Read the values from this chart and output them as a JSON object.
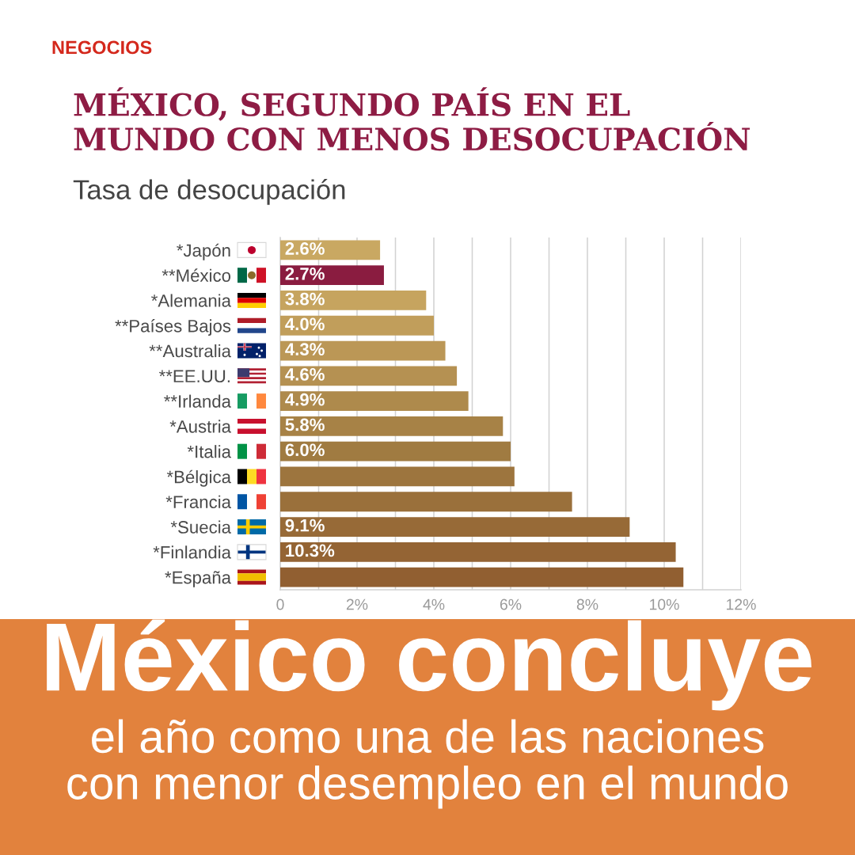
{
  "chart_data": {
    "type": "bar",
    "orientation": "horizontal",
    "title": "MÉXICO, SEGUNDO PAÍS EN EL\nMUNDO CON MENOS DESOCUPACIÓN",
    "subtitle": "Tasa de desocupación",
    "categories": [
      "*Japón",
      "**México",
      "*Alemania",
      "**Países Bajos",
      "**Australia",
      "**EE.UU.",
      "**Irlanda",
      "*Austria",
      "*Italia",
      "*Bélgica",
      "*Francia",
      "*Suecia",
      "*Finlandia",
      "*España"
    ],
    "values": [
      2.6,
      2.7,
      3.8,
      4.0,
      4.3,
      4.6,
      4.9,
      5.8,
      6.0,
      6.1,
      7.6,
      9.1,
      10.3,
      10.5
    ],
    "value_labels": [
      "2.6%",
      "2.7%",
      "3.8%",
      "4.0%",
      "4.3%",
      "4.6%",
      "4.9%",
      "5.8%",
      "6.0%",
      null,
      null,
      "9.1%",
      "10.3%",
      null
    ],
    "colors": [
      "#c9a862",
      "#8a1c40",
      "#c6a45f",
      "#c19e5b",
      "#bb9756",
      "#b59152",
      "#ae8a4c",
      "#a78246",
      "#a07b41",
      "#9d753e",
      "#9a703b",
      "#976a37",
      "#946434",
      "#915f31"
    ],
    "xlim": [
      0,
      12
    ],
    "xticks": [
      0,
      {
        "value": 1,
        "label": null
      },
      {
        "value": 2,
        "label": "2%"
      },
      {
        "value": 3,
        "label": null
      },
      {
        "value": 4,
        "label": "4%"
      },
      {
        "value": 5,
        "label": null
      },
      {
        "value": 6,
        "label": "6%"
      },
      {
        "value": 7,
        "label": null
      },
      {
        "value": 8,
        "label": "8%"
      },
      {
        "value": 9,
        "label": null
      },
      {
        "value": 10,
        "label": "10%"
      },
      {
        "value": 11,
        "label": null
      },
      {
        "value": 12,
        "label": "12%"
      }
    ],
    "grid": "x",
    "annotations": [
      "NEGOCIOS",
      "México concluye",
      "el año como una de las naciones\ncon menor desempleo en el mundo"
    ]
  }
}
